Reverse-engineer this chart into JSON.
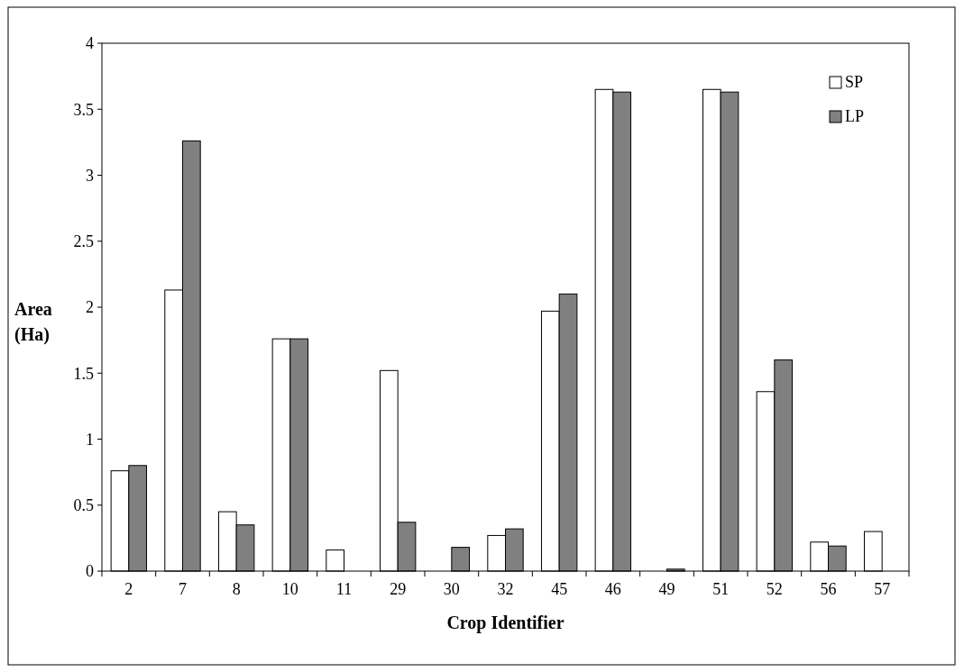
{
  "chart_data": {
    "type": "bar",
    "xlabel": "Crop Identifier",
    "ylabel": "Area (Ha)",
    "categories": [
      "2",
      "7",
      "8",
      "10",
      "11",
      "29",
      "30",
      "32",
      "45",
      "46",
      "49",
      "51",
      "52",
      "56",
      "57"
    ],
    "series": [
      {
        "name": "SP",
        "color": "#ffffff",
        "values": [
          0.76,
          2.13,
          0.45,
          1.76,
          0.16,
          1.52,
          0,
          0.27,
          1.97,
          3.65,
          0,
          3.65,
          1.36,
          0.22,
          0.3
        ]
      },
      {
        "name": "LP",
        "color": "#808080",
        "values": [
          0.8,
          3.26,
          0.35,
          1.76,
          0,
          0.37,
          0.18,
          0.32,
          2.1,
          3.63,
          0.015,
          3.63,
          1.6,
          0.19,
          0
        ]
      }
    ],
    "ylim": [
      0,
      4
    ],
    "yticks": [
      0,
      0.5,
      1,
      1.5,
      2,
      2.5,
      3,
      3.5,
      4
    ],
    "grid": false,
    "legend": "top right"
  }
}
